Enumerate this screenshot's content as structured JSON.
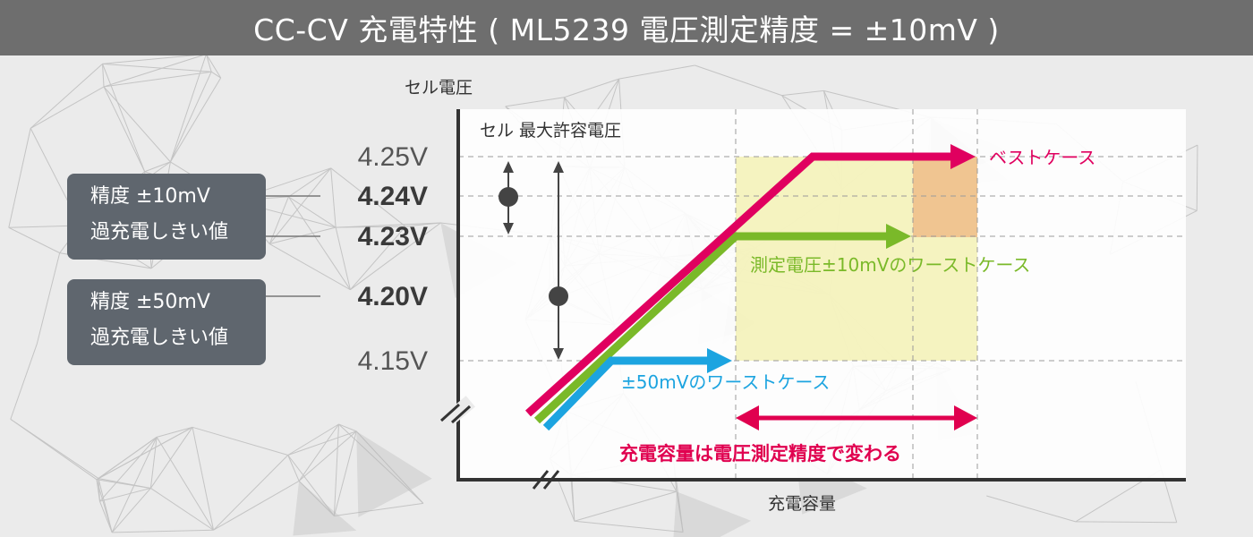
{
  "header": {
    "title": "CC-CV 充電特性 ( ML5239 電圧測定精度 = ±10mV )"
  },
  "callouts": [
    {
      "line1": "精度 ±10mV",
      "line2": "過充電しきい値"
    },
    {
      "line1": "精度 ±50mV",
      "line2": "過充電しきい値"
    }
  ],
  "chart_data": {
    "type": "line",
    "title": "",
    "xlabel": "充電容量",
    "ylabel": "セル電圧",
    "y_ticks": [
      {
        "label": "4.25V",
        "value": 4.25,
        "bold": false
      },
      {
        "label": "4.24V",
        "value": 4.24,
        "bold": true
      },
      {
        "label": "4.23V",
        "value": 4.23,
        "bold": true
      },
      {
        "label": "4.20V",
        "value": 4.2,
        "bold": true
      },
      {
        "label": "4.15V",
        "value": 4.15,
        "bold": false
      }
    ],
    "grid": true,
    "series": [
      {
        "name": "ベストケース",
        "color": "#e0005f",
        "cv_voltage": 4.25
      },
      {
        "name": "測定電圧±10mVのワーストケース",
        "color": "#7ab929",
        "cv_voltage": 4.23
      },
      {
        "name": "±50mVのワーストケース",
        "color": "#1ca4e0",
        "cv_voltage": 4.15
      }
    ],
    "annotations": {
      "max_voltage": "セル 最大許容電圧",
      "capacity_note": "充電容量は電圧測定精度で変わる"
    },
    "colors": {
      "best": "#e0005f",
      "worst10": "#7ab929",
      "worst50": "#1ca4e0",
      "arrow": "#e0004f",
      "band_yellow": "#f3f0b0",
      "band_orange": "#f0c08c"
    }
  }
}
